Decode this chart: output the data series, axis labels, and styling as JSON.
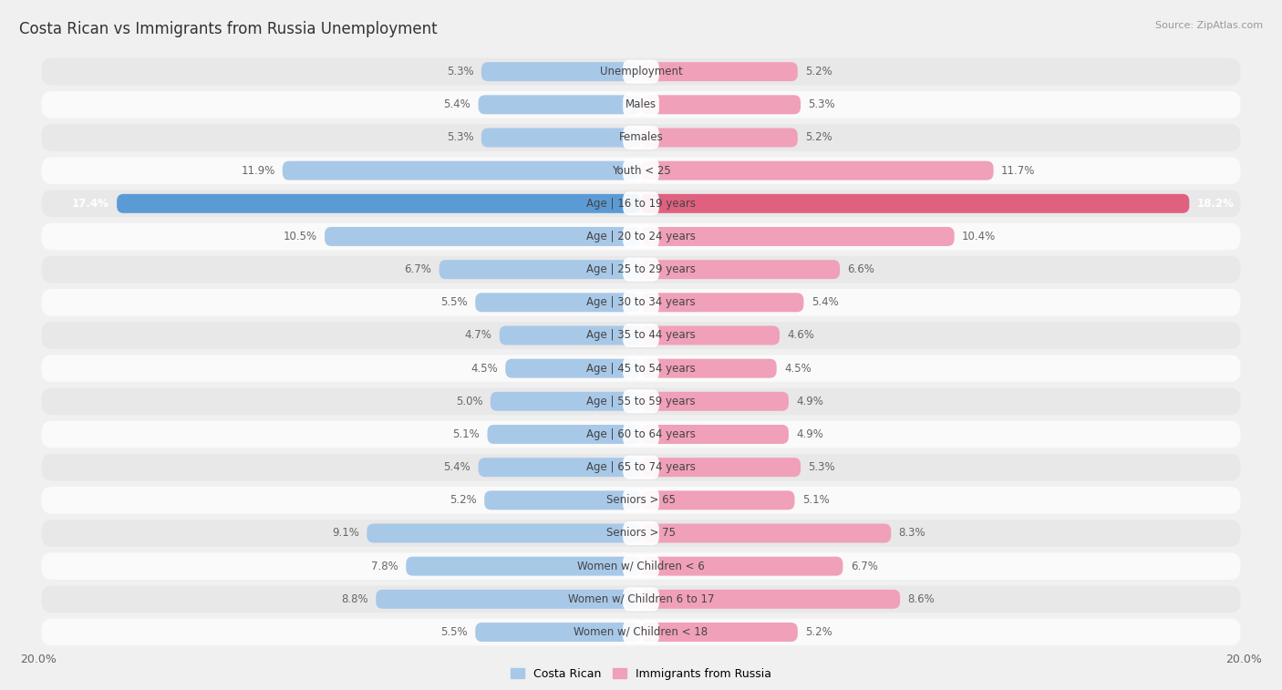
{
  "title": "Costa Rican vs Immigrants from Russia Unemployment",
  "source": "Source: ZipAtlas.com",
  "categories": [
    "Unemployment",
    "Males",
    "Females",
    "Youth < 25",
    "Age | 16 to 19 years",
    "Age | 20 to 24 years",
    "Age | 25 to 29 years",
    "Age | 30 to 34 years",
    "Age | 35 to 44 years",
    "Age | 45 to 54 years",
    "Age | 55 to 59 years",
    "Age | 60 to 64 years",
    "Age | 65 to 74 years",
    "Seniors > 65",
    "Seniors > 75",
    "Women w/ Children < 6",
    "Women w/ Children 6 to 17",
    "Women w/ Children < 18"
  ],
  "costa_rican": [
    5.3,
    5.4,
    5.3,
    11.9,
    17.4,
    10.5,
    6.7,
    5.5,
    4.7,
    4.5,
    5.0,
    5.1,
    5.4,
    5.2,
    9.1,
    7.8,
    8.8,
    5.5
  ],
  "immigrants_russia": [
    5.2,
    5.3,
    5.2,
    11.7,
    18.2,
    10.4,
    6.6,
    5.4,
    4.6,
    4.5,
    4.9,
    4.9,
    5.3,
    5.1,
    8.3,
    6.7,
    8.6,
    5.2
  ],
  "costa_rican_color": "#a8c8e8",
  "immigrants_russia_color": "#f0a0b8",
  "highlight_costa_rican_color": "#5b9bd5",
  "highlight_russia_color": "#e06080",
  "highlight_row": 4,
  "xlim": 20.0,
  "background_color": "#f0f0f0",
  "row_bg_even": "#e8e8e8",
  "row_bg_odd": "#fafafa",
  "label_fontsize": 8.5,
  "title_fontsize": 12,
  "legend_labels": [
    "Costa Rican",
    "Immigrants from Russia"
  ]
}
